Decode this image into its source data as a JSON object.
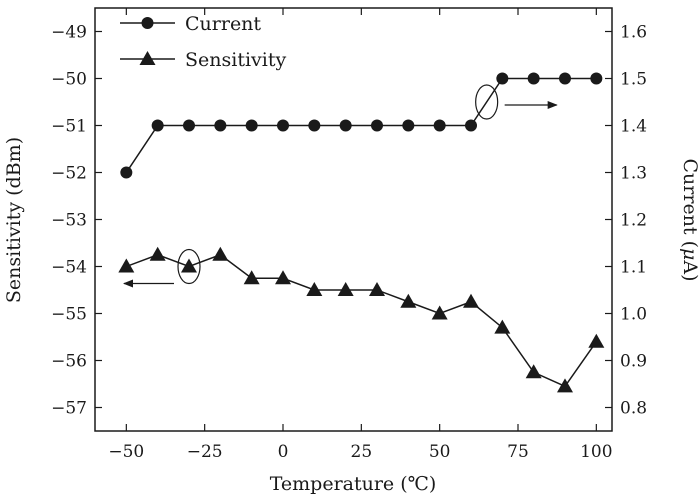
{
  "chart_data": {
    "type": "line",
    "xlabel": "Temperature (℃)",
    "ylabel_left": "Sensitivity (dBm)",
    "ylabel_right_prefix": "Current (",
    "ylabel_right_symbol": "μ",
    "ylabel_right_suffix": "A)",
    "xlim": [
      -60,
      105
    ],
    "xticks": [
      -50,
      -25,
      0,
      25,
      50,
      75,
      100
    ],
    "xtick_labels": [
      "−50",
      "−25",
      "0",
      "25",
      "50",
      "75",
      "100"
    ],
    "ylim_left": [
      -57.5,
      -48.5
    ],
    "yticks_left": [
      -57,
      -56,
      -55,
      -54,
      -53,
      -52,
      -51,
      -50,
      -49
    ],
    "ytick_labels_left": [
      "−57",
      "−56",
      "−55",
      "−54",
      "−53",
      "−52",
      "−51",
      "−50",
      "−49"
    ],
    "ylim_right": [
      0.75,
      1.65
    ],
    "yticks_right": [
      0.8,
      0.9,
      1.0,
      1.1,
      1.2,
      1.3,
      1.4,
      1.5,
      1.6
    ],
    "ytick_labels_right": [
      "0.8",
      "0.9",
      "1.0",
      "1.1",
      "1.2",
      "1.3",
      "1.4",
      "1.5",
      "1.6"
    ],
    "grid": false,
    "legend_position": "top-left",
    "series": [
      {
        "name": "Current",
        "axis": "right",
        "marker": "circle",
        "x": [
          -50,
          -40,
          -30,
          -20,
          -10,
          0,
          10,
          20,
          30,
          40,
          50,
          60,
          70,
          80,
          90,
          100
        ],
        "y": [
          1.3,
          1.4,
          1.4,
          1.4,
          1.4,
          1.4,
          1.4,
          1.4,
          1.4,
          1.4,
          1.4,
          1.4,
          1.5,
          1.5,
          1.5,
          1.5
        ]
      },
      {
        "name": "Sensitivity",
        "axis": "left",
        "marker": "triangle",
        "x": [
          -50,
          -40,
          -30,
          -20,
          -10,
          0,
          10,
          20,
          30,
          40,
          50,
          60,
          70,
          80,
          90,
          100
        ],
        "y": [
          -54.0,
          -53.75,
          -54.0,
          -53.75,
          -54.25,
          -54.25,
          -54.5,
          -54.5,
          -54.5,
          -54.75,
          -55.0,
          -54.75,
          -55.3,
          -56.25,
          -56.55,
          -55.6
        ]
      }
    ],
    "annotations": [
      {
        "target": "Current",
        "ellipse_at": [
          65,
          1.45
        ],
        "arrow_direction": "right"
      },
      {
        "target": "Sensitivity",
        "ellipse_at": [
          -30,
          -54.0
        ],
        "arrow_direction": "left"
      }
    ]
  },
  "colors": {
    "ink": "#1a1a1a",
    "background": "#ffffff"
  }
}
